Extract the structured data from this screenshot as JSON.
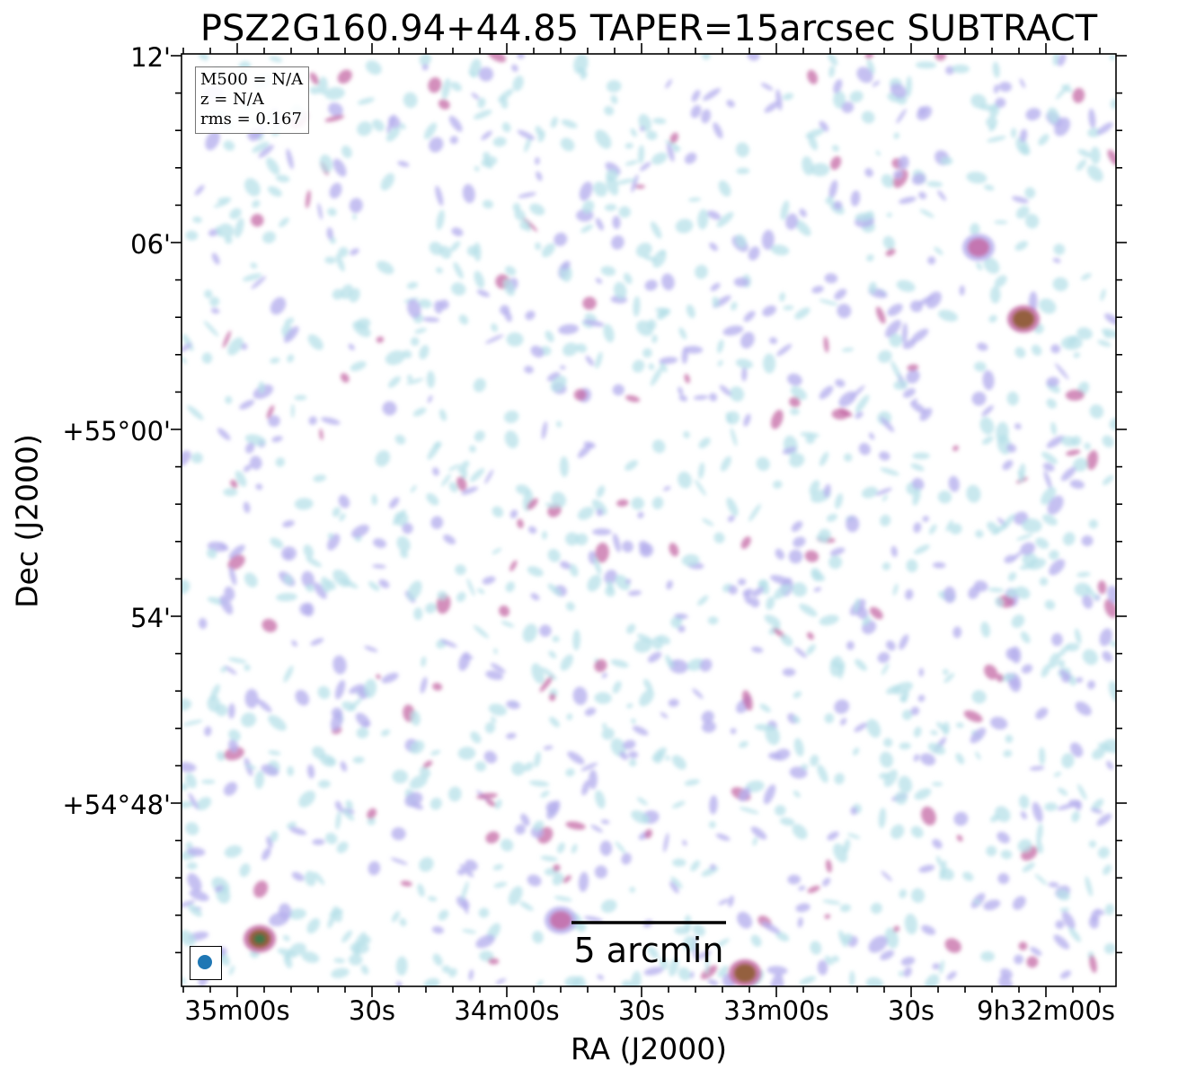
{
  "chart_data": {
    "type": "heatmap",
    "title": "PSZ2G160.94+44.85 TAPER=15arcsec SUBTRACT",
    "xlabel": "RA (J2000)",
    "ylabel": "Dec (J2000)",
    "x_ticks": [
      "35m00s",
      "30s",
      "34m00s",
      "30s",
      "33m00s",
      "30s",
      "9h32m00s"
    ],
    "y_ticks": [
      "12'",
      "06'",
      "+55°00'",
      "54'",
      "+54°48'"
    ],
    "annotation": {
      "m500": "M500 = N/A",
      "z": "z = N/A",
      "rms": "rms = 0.167"
    },
    "scalebar_label": "5 arcmin",
    "colors": {
      "faint": "#b7e0e8",
      "low": "#b7b0ee",
      "mid": "#c46aa6",
      "high": "#8a5a2a",
      "peak": "#2e7d4a",
      "beam": "#1f77b4"
    },
    "bright_sources": [
      {
        "ra": "9h34m55s",
        "dec": "+54°43.7'",
        "level": "peak"
      },
      {
        "ra": "9h32m05s",
        "dec": "+55°03.6'",
        "level": "high"
      },
      {
        "ra": "9h32m15s",
        "dec": "+55°05.9'",
        "level": "mid"
      },
      {
        "ra": "9h33m07s",
        "dec": "+54°42.6'",
        "level": "high"
      },
      {
        "ra": "9h33m48s",
        "dec": "+54°44.3'",
        "level": "mid"
      }
    ]
  }
}
